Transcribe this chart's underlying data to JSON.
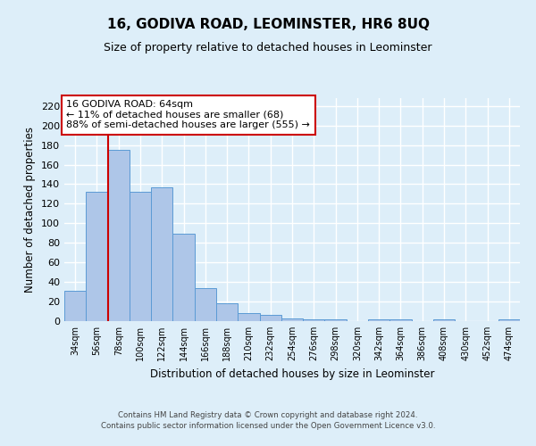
{
  "title": "16, GODIVA ROAD, LEOMINSTER, HR6 8UQ",
  "subtitle": "Size of property relative to detached houses in Leominster",
  "xlabel": "Distribution of detached houses by size in Leominster",
  "ylabel": "Number of detached properties",
  "footer_line1": "Contains HM Land Registry data © Crown copyright and database right 2024.",
  "footer_line2": "Contains public sector information licensed under the Open Government Licence v3.0.",
  "categories": [
    "34sqm",
    "56sqm",
    "78sqm",
    "100sqm",
    "122sqm",
    "144sqm",
    "166sqm",
    "188sqm",
    "210sqm",
    "232sqm",
    "254sqm",
    "276sqm",
    "298sqm",
    "320sqm",
    "342sqm",
    "364sqm",
    "386sqm",
    "408sqm",
    "430sqm",
    "452sqm",
    "474sqm"
  ],
  "values": [
    31,
    132,
    175,
    132,
    137,
    89,
    34,
    18,
    8,
    6,
    3,
    2,
    2,
    0,
    2,
    2,
    0,
    2,
    0,
    0,
    2
  ],
  "bar_color": "#aec6e8",
  "bar_edge_color": "#5b9bd5",
  "background_color": "#ddeef9",
  "fig_background_color": "#ddeef9",
  "grid_color": "#ffffff",
  "red_line_x": 1.5,
  "annotation_title": "16 GODIVA ROAD: 64sqm",
  "annotation_line2": "← 11% of detached houses are smaller (68)",
  "annotation_line3": "88% of semi-detached houses are larger (555) →",
  "annotation_box_color": "#ffffff",
  "annotation_border_color": "#cc0000",
  "red_line_color": "#cc0000",
  "ylim": [
    0,
    228
  ],
  "yticks": [
    0,
    20,
    40,
    60,
    80,
    100,
    120,
    140,
    160,
    180,
    200,
    220
  ]
}
